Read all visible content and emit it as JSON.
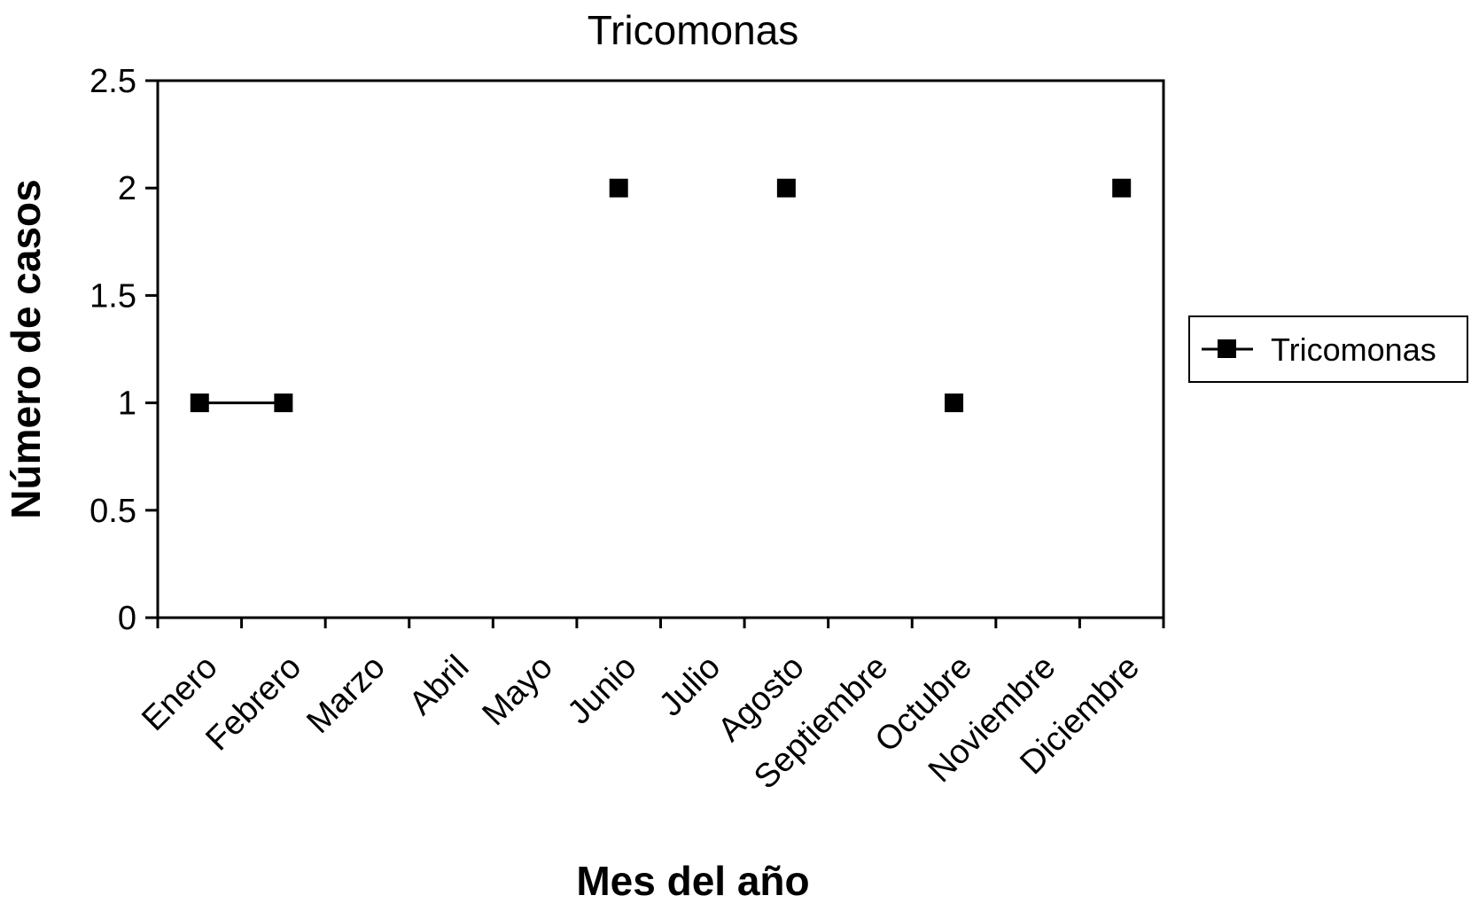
{
  "chart_data": {
    "type": "line",
    "title": "Tricomonas",
    "xlabel": "Mes del año",
    "ylabel": "Número de casos",
    "categories": [
      "Enero",
      "Febrero",
      "Marzo",
      "Abril",
      "Mayo",
      "Junio",
      "Julio",
      "Agosto",
      "Septiembre",
      "Octubre",
      "Noviembre",
      "Diciembre"
    ],
    "series": [
      {
        "name": "Tricomonas",
        "values": [
          1,
          1,
          null,
          null,
          null,
          2,
          null,
          2,
          null,
          1,
          null,
          2
        ],
        "color": "#000000",
        "marker": "square"
      }
    ],
    "ylim": [
      0,
      2.5
    ],
    "yticks": [
      "0",
      "0.5",
      "1",
      "1.5",
      "2",
      "2.5"
    ],
    "grid": false,
    "legend": "right"
  }
}
